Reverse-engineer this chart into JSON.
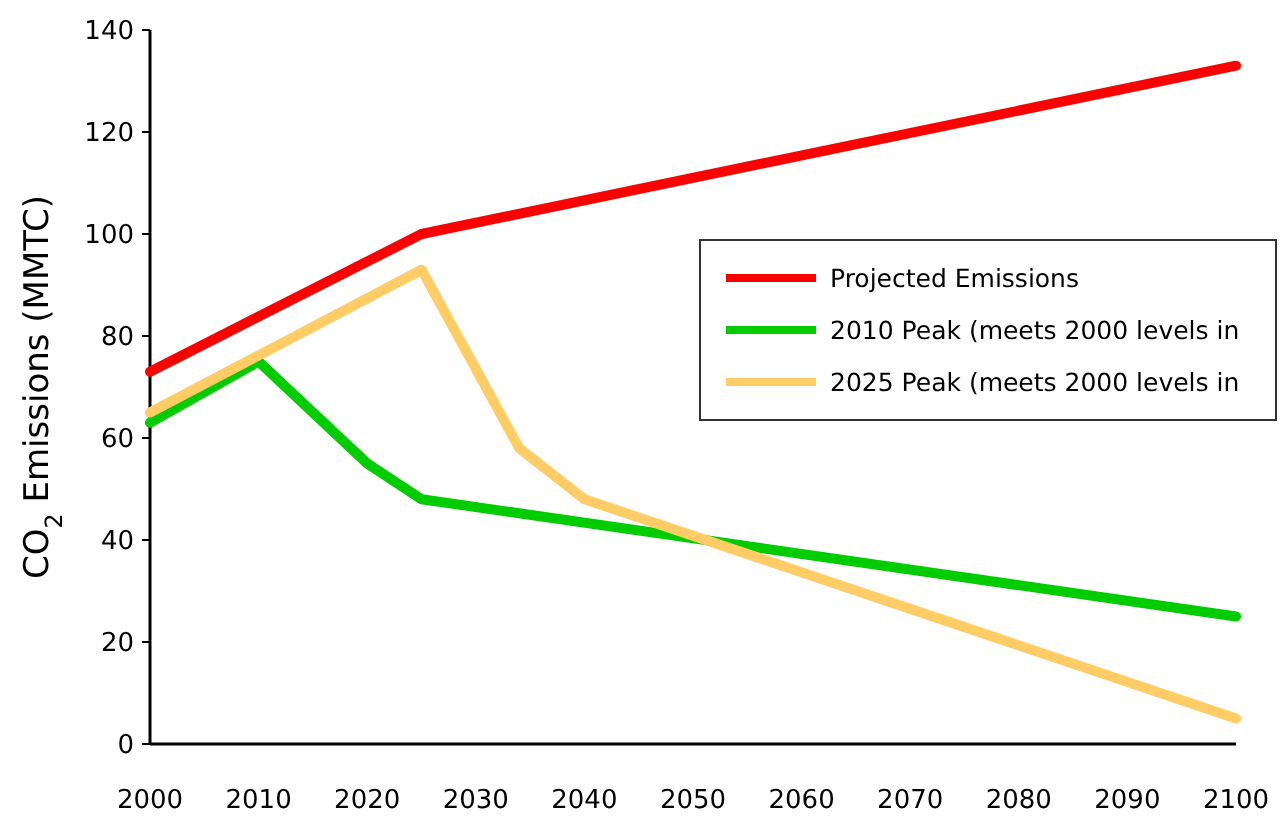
{
  "chart_data": {
    "type": "line",
    "ylabel": "CO$_{2}$ Emissions (MMTC)",
    "xlim": [
      2000,
      2100
    ],
    "xticks": [
      2000,
      2010,
      2020,
      2030,
      2040,
      2050,
      2060,
      2070,
      2080,
      2090,
      2100
    ],
    "ylim": [
      0,
      140
    ],
    "yticks": [
      0,
      20,
      40,
      60,
      80,
      100,
      120,
      140
    ],
    "grid": false,
    "legend": "right",
    "marker": "none",
    "line_style": "solid",
    "series": [
      {
        "name": "Projected Emissions",
        "color": "#ff0000",
        "x": [
          2000,
          2025,
          2100
        ],
        "values": [
          73,
          100,
          133
        ]
      },
      {
        "name": "2010 Peak (meets 2000 levels in",
        "color": "#00cc00",
        "x": [
          2000,
          2010,
          2020,
          2025,
          2100
        ],
        "values": [
          63,
          75,
          55,
          48,
          25
        ]
      },
      {
        "name": "2025 Peak (meets 2000 levels in",
        "color": "#ffcc66",
        "x": [
          2000,
          2025,
          2034,
          2040,
          2100
        ],
        "values": [
          65,
          93,
          58,
          48,
          5
        ]
      }
    ]
  }
}
